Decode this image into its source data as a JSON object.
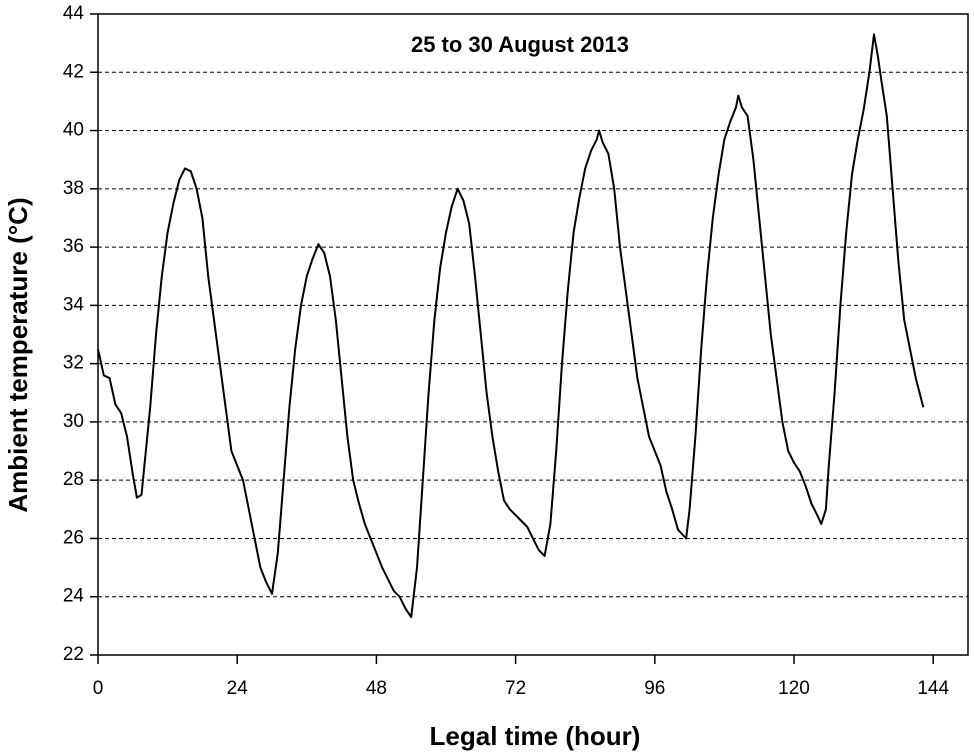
{
  "chart_data": {
    "type": "line",
    "title": "25 to 30 August 2013",
    "xlabel": "Legal time (hour)",
    "ylabel": "Ambient temperature (°C)",
    "xlim": [
      0,
      150
    ],
    "xticks": [
      0,
      24,
      48,
      72,
      96,
      120,
      144
    ],
    "ylim": [
      22,
      44
    ],
    "yticks": [
      22,
      24,
      26,
      28,
      30,
      32,
      34,
      36,
      38,
      40,
      42,
      44
    ],
    "grid": true,
    "series": [
      {
        "color": "#000000",
        "x": [
          0,
          1,
          2,
          3,
          4,
          5,
          6,
          6.7,
          7.5,
          8,
          9,
          10,
          11,
          12,
          13,
          14,
          15,
          16,
          17,
          18,
          19,
          20,
          21,
          22,
          23,
          24,
          25,
          26,
          27,
          28,
          29,
          30,
          31,
          32,
          33,
          34,
          35,
          36,
          37,
          38,
          39,
          40,
          41,
          42,
          43,
          44,
          45,
          46,
          47,
          48,
          49,
          50,
          51,
          52,
          53,
          54,
          55,
          56,
          57,
          58,
          59,
          60,
          61,
          62,
          63,
          64,
          65,
          66,
          67,
          68,
          69,
          70,
          71,
          72,
          73,
          74,
          75,
          76,
          77,
          78,
          79,
          80,
          81,
          82,
          83,
          84,
          85,
          86,
          86.4,
          87,
          88,
          89,
          90,
          91,
          92,
          93,
          94,
          95,
          96,
          97,
          98,
          99,
          100,
          101.4,
          102,
          103,
          104,
          105,
          106,
          107,
          108,
          109,
          110,
          110.4,
          111,
          112,
          113,
          114,
          115,
          116,
          117,
          118,
          119,
          120,
          121,
          122,
          123,
          124,
          124.7,
          125.5,
          126,
          127,
          128,
          129,
          130,
          131,
          132,
          133,
          133.8,
          134.5,
          135,
          136,
          137,
          138,
          139,
          140,
          141,
          142.3
        ],
        "values": [
          32.5,
          31.6,
          31.5,
          30.6,
          30.3,
          29.5,
          28.2,
          27.4,
          27.5,
          28.5,
          30.5,
          33,
          35,
          36.5,
          37.5,
          38.3,
          38.7,
          38.6,
          38,
          37,
          35,
          33.5,
          32,
          30.5,
          29,
          28.5,
          28,
          27,
          26,
          25,
          24.5,
          24.1,
          25.5,
          28,
          30.5,
          32.5,
          34,
          35,
          35.6,
          36.1,
          35.8,
          35,
          33.5,
          31.5,
          29.5,
          28,
          27.2,
          26.5,
          26,
          25.5,
          25,
          24.6,
          24.2,
          24,
          23.6,
          23.3,
          25,
          28,
          31,
          33.5,
          35.3,
          36.5,
          37.4,
          38,
          37.6,
          36.8,
          35,
          33,
          31,
          29.5,
          28.3,
          27.3,
          27,
          26.8,
          26.6,
          26.4,
          26,
          25.6,
          25.4,
          26.5,
          29,
          32,
          34.5,
          36.5,
          37.7,
          38.7,
          39.3,
          39.7,
          40,
          39.6,
          39.2,
          38,
          36,
          34.5,
          33,
          31.5,
          30.5,
          29.5,
          29,
          28.5,
          27.6,
          27,
          26.3,
          26,
          27,
          29.5,
          32.5,
          35,
          37,
          38.5,
          39.7,
          40.3,
          40.8,
          41.2,
          40.8,
          40.5,
          39,
          37,
          35,
          33,
          31.5,
          30,
          29,
          28.6,
          28.3,
          27.8,
          27.2,
          26.8,
          26.5,
          27,
          28.5,
          31,
          34,
          36.5,
          38.5,
          39.7,
          40.7,
          42,
          43.3,
          42.5,
          41.8,
          40.5,
          38,
          35.5,
          33.5,
          32.5,
          31.5,
          30.5
        ]
      }
    ]
  }
}
